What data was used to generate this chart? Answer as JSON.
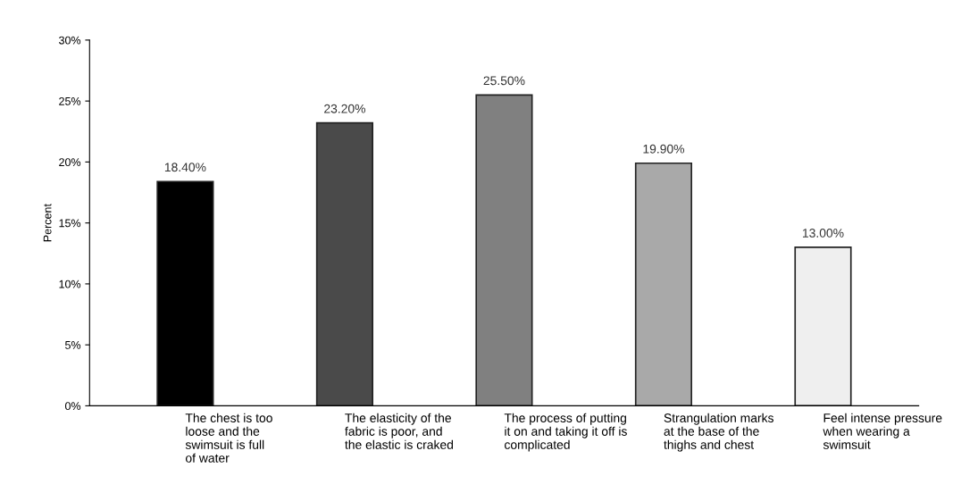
{
  "chart_data": {
    "type": "bar",
    "ylabel": "Percent",
    "categories": [
      "The chest is too\nloose and the\nswimsuit is full\nof water",
      "The elasticity of the\nfabric is poor, and\nthe elastic is craked",
      "The process of putting\nit on and taking it off is\ncomplicated",
      "Strangulation marks\nat the base of the\nthighs and chest",
      "Feel intense pressure\nwhen wearing a\nswimsuit"
    ],
    "values": [
      18.4,
      23.2,
      25.5,
      19.9,
      13.0
    ],
    "colors": [
      "#000000",
      "#4a4a4a",
      "#808080",
      "#a9a9a9",
      "#efefef"
    ],
    "value_labels": [
      "18.40%",
      "23.20%",
      "25.50%",
      "19.90%",
      "13.00%"
    ],
    "ylim": [
      0,
      30
    ],
    "yticks": [
      {
        "value": 0,
        "label": "0%"
      },
      {
        "value": 5,
        "label": "5%"
      },
      {
        "value": 10,
        "label": "10%"
      },
      {
        "value": 15,
        "label": "15%"
      },
      {
        "value": 20,
        "label": "20%"
      },
      {
        "value": 25,
        "label": "25%"
      },
      {
        "value": 30,
        "label": "30%"
      }
    ],
    "grid": false,
    "legend": false
  }
}
